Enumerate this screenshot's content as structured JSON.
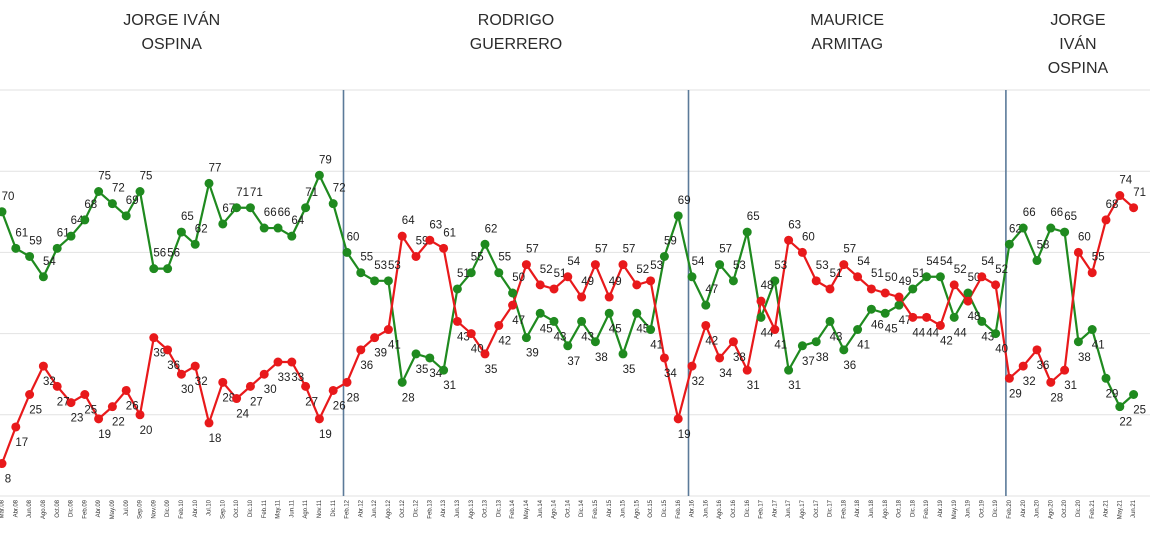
{
  "chart_data": {
    "type": "line",
    "categories": [
      "Mar.08",
      "Abr.08",
      "Jun.08",
      "Ago.08",
      "Oct.08",
      "Dic.08",
      "Feb.09",
      "Abr.09",
      "May.09",
      "Jul.09",
      "Sep.09",
      "Nov.09",
      "Dic.09",
      "Feb.10",
      "Abr.10",
      "Jul.10",
      "Sep.10",
      "Oct.10",
      "Dic.10",
      "Feb.11",
      "May.11",
      "Jun.11",
      "Ago.11",
      "Nov.11",
      "Dic.11",
      "Feb.12",
      "Abr.12",
      "Jun.12",
      "Ago.12",
      "Oct.12",
      "Dic.12",
      "Feb.13",
      "Abr.13",
      "Jun.13",
      "Ago.13",
      "Oct.13",
      "Dic.13",
      "Feb.14",
      "May.14",
      "Jun.14",
      "Ago.14",
      "Oct.14",
      "Dic.14",
      "Feb.15",
      "Abr.15",
      "Jun.15",
      "Ago.15",
      "Oct.15",
      "Dic.15",
      "Feb.16",
      "Abr.16",
      "Jun.16",
      "Ago.16",
      "Oct.16",
      "Dic.16",
      "Feb.17",
      "Abr.17",
      "Jun.17",
      "Ago.17",
      "Oct.17",
      "Dic.17",
      "Feb.18",
      "Abr.18",
      "Jun.18",
      "Ago.18",
      "Oct.18",
      "Dic.18",
      "Feb.19",
      "Abr.19",
      "May.19",
      "Jun.19",
      "Oct.19",
      "Dic.19",
      "Feb.20",
      "Abr.20",
      "Jun.20",
      "Ago.20",
      "Oct.20",
      "Dic.20",
      "Feb.21",
      "Abr.21",
      "May.21",
      "Jun.21"
    ],
    "series": [
      {
        "color": "#1f8a1f",
        "values": [
          70,
          61,
          59,
          54,
          61,
          64,
          68,
          75,
          72,
          69,
          75,
          56,
          56,
          65,
          62,
          77,
          67,
          71,
          71,
          66,
          66,
          64,
          71,
          79,
          72,
          60,
          55,
          53,
          53,
          28,
          35,
          34,
          31,
          51,
          55,
          62,
          55,
          50,
          39,
          45,
          43,
          37,
          43,
          38,
          45,
          35,
          45,
          41,
          59,
          69,
          54,
          47,
          57,
          53,
          65,
          44,
          53,
          31,
          37,
          38,
          43,
          36,
          41,
          46,
          45,
          47,
          51,
          54,
          54,
          44,
          50,
          43,
          40,
          62,
          66,
          58,
          66,
          65,
          38,
          41,
          29,
          22,
          25
        ]
      },
      {
        "color": "#e8191b",
        "values": [
          8,
          17,
          25,
          32,
          27,
          23,
          25,
          19,
          22,
          26,
          20,
          39,
          36,
          30,
          32,
          18,
          28,
          24,
          27,
          30,
          33,
          33,
          27,
          19,
          26,
          28,
          36,
          39,
          41,
          64,
          59,
          63,
          61,
          43,
          40,
          35,
          42,
          47,
          57,
          52,
          51,
          54,
          49,
          57,
          49,
          57,
          52,
          53,
          34,
          19,
          32,
          42,
          34,
          38,
          31,
          48,
          41,
          63,
          60,
          53,
          51,
          57,
          54,
          51,
          50,
          49,
          44,
          44,
          42,
          52,
          48,
          54,
          52,
          29,
          32,
          36,
          28,
          31,
          60,
          55,
          68,
          74,
          71
        ]
      }
    ],
    "ylim": [
      0,
      100
    ],
    "yticks": [
      0,
      20,
      40,
      60,
      80,
      100
    ],
    "grid": true,
    "periods": [
      {
        "name": [
          "JORGE IVÁN",
          "OSPINA"
        ],
        "start": 0
      },
      {
        "name": [
          "RODRIGO",
          "GUERRERO"
        ],
        "start": 25
      },
      {
        "name": [
          "MAURICE",
          "ARMITAG"
        ],
        "start": 50
      },
      {
        "name": [
          "JORGE",
          "IVÁN",
          "OSPINA"
        ],
        "start": 73
      }
    ]
  }
}
